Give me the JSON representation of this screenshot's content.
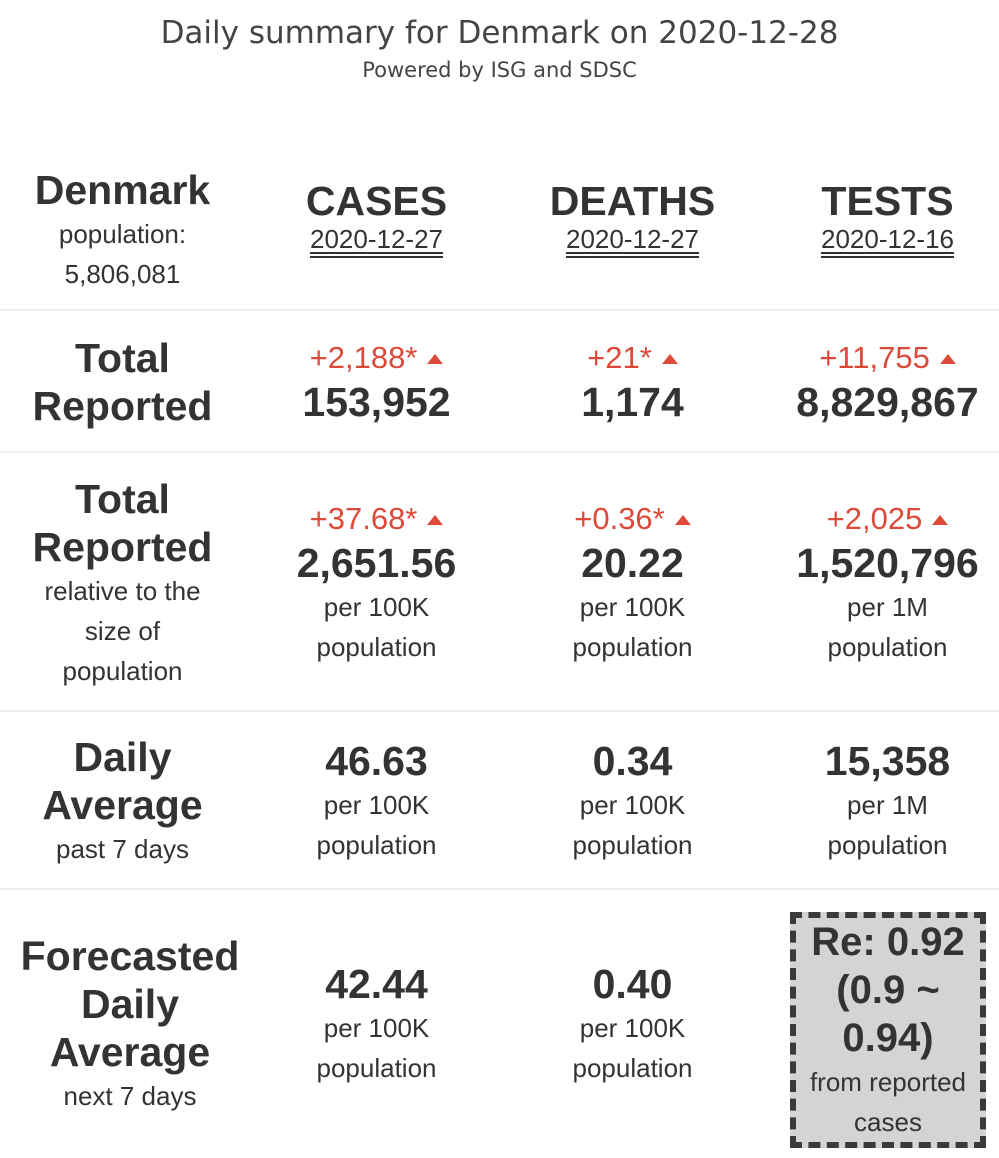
{
  "header": {
    "title": "Daily summary for Denmark on 2020-12-28",
    "subtitle": "Powered by ISG and SDSC"
  },
  "country": {
    "name": "Denmark",
    "population_label": "population:",
    "population_value": "5,806,081"
  },
  "columns": [
    {
      "title": "CASES",
      "date": "2020-12-27"
    },
    {
      "title": "DEATHS",
      "date": "2020-12-27"
    },
    {
      "title": "TESTS",
      "date": "2020-12-16"
    }
  ],
  "total_reported": {
    "label_line1": "Total",
    "label_line2": "Reported",
    "values": [
      {
        "delta": "+2,188*",
        "value": "153,952"
      },
      {
        "delta": "+21*",
        "value": "1,174"
      },
      {
        "delta": "+11,755",
        "value": "8,829,867"
      }
    ],
    "delta_color": "#dd4a3a"
  },
  "relative": {
    "label_line1": "Total",
    "label_line2": "Reported",
    "label_sub1": "relative to the",
    "label_sub2": "size of",
    "label_sub3": "population",
    "values": [
      {
        "delta": "+37.68*",
        "value": "2,651.56",
        "unit1": "per 100K",
        "unit2": "population"
      },
      {
        "delta": "+0.36*",
        "value": "20.22",
        "unit1": "per 100K",
        "unit2": "population"
      },
      {
        "delta": "+2,025",
        "value": "1,520,796",
        "unit1": "per 1M",
        "unit2": "population"
      }
    ]
  },
  "daily_average": {
    "label_line1": "Daily",
    "label_line2": "Average",
    "label_sub": "past 7 days",
    "values": [
      {
        "value": "46.63",
        "unit1": "per 100K",
        "unit2": "population"
      },
      {
        "value": "0.34",
        "unit1": "per 100K",
        "unit2": "population"
      },
      {
        "value": "15,358",
        "unit1": "per 1M",
        "unit2": "population"
      }
    ]
  },
  "forecast": {
    "label_line1": "Forecasted",
    "label_line2": "Daily",
    "label_line3": "Average",
    "label_sub": "next 7 days",
    "values": [
      {
        "value": "42.44",
        "unit1": "per 100K",
        "unit2": "population"
      },
      {
        "value": "0.40",
        "unit1": "per 100K",
        "unit2": "population"
      }
    ],
    "re": {
      "line1": "Re: 0.92",
      "line2": "(0.9 ~",
      "line3": "0.94)",
      "sub1": "from reported",
      "sub2": "cases"
    }
  }
}
